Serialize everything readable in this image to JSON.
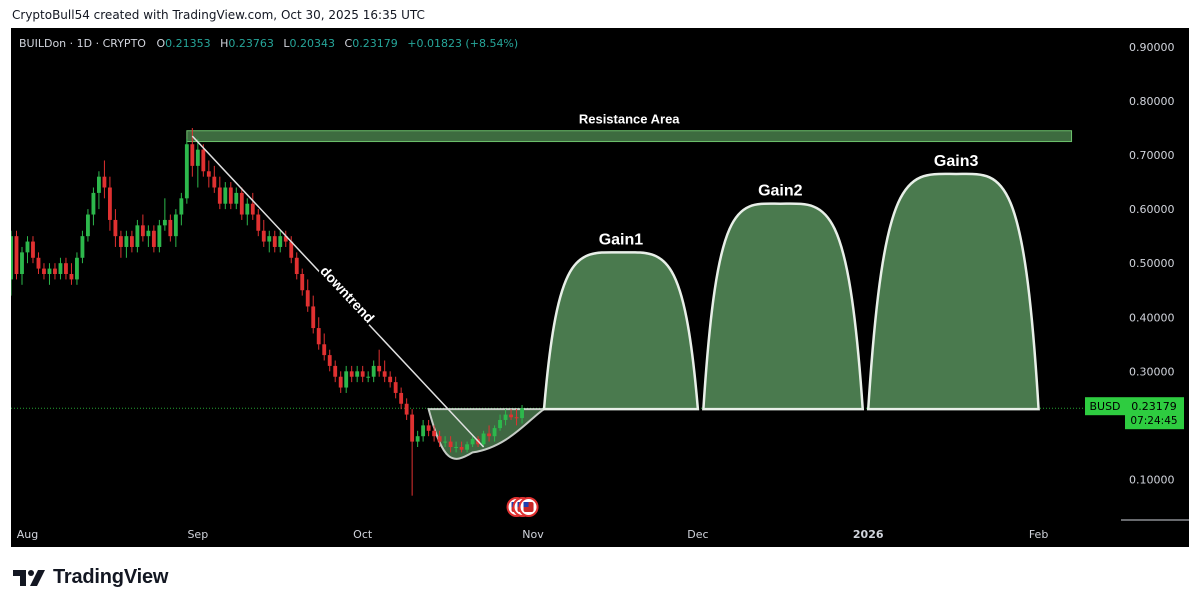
{
  "header": {
    "attribution": "CryptoBull54 created with TradingView.com, Oct 30, 2025 16:35 UTC"
  },
  "symbol": {
    "title": "BUILDon · 1D · CRYPTO",
    "open_label": "O",
    "open": "0.21353",
    "high_label": "H",
    "high": "0.23763",
    "low_label": "L",
    "low": "0.20343",
    "close_label": "C",
    "close": "0.23179",
    "change": "+0.01823 (+8.54%)"
  },
  "price_badge": {
    "currency": "BUSD",
    "price": "0.23179",
    "countdown": "07:24:45"
  },
  "brand": {
    "name": "TradingView"
  },
  "colors": {
    "background": "#000000",
    "up": "#2db84c",
    "down": "#e03131",
    "shape_fill": "#4a7a4e",
    "shape_stroke": "#e8efe8",
    "resistance_fill": "#3d6b3f",
    "resistance_stroke": "#6dc26d",
    "axis_text": "#d1d4dc",
    "badge": "#2ecc40"
  },
  "chart_data": {
    "type": "candlestick",
    "price_axis": {
      "ylim": [
        0.025,
        0.935
      ],
      "ticks": [
        0.9,
        0.8,
        0.7,
        0.6,
        0.5,
        0.4,
        0.3,
        0.1
      ],
      "tick_labels": [
        "0.90000",
        "0.80000",
        "0.70000",
        "0.60000",
        "0.50000",
        "0.40000",
        "0.30000",
        "0.10000"
      ]
    },
    "time_axis": {
      "start": "2025-07-29",
      "end": "2026-02-16",
      "labels": [
        {
          "date": "2025-08-01",
          "label": "Aug"
        },
        {
          "date": "2025-09-01",
          "label": "Sep"
        },
        {
          "date": "2025-10-01",
          "label": "Oct"
        },
        {
          "date": "2025-11-01",
          "label": "Nov"
        },
        {
          "date": "2025-12-01",
          "label": "Dec"
        },
        {
          "date": "2026-01-01",
          "label": "2026",
          "bold": true
        },
        {
          "date": "2026-02-01",
          "label": "Feb"
        }
      ]
    },
    "candles": [
      {
        "t": "2025-07-29",
        "o": 0.47,
        "h": 0.56,
        "l": 0.44,
        "c": 0.55
      },
      {
        "t": "2025-07-30",
        "o": 0.55,
        "h": 0.56,
        "l": 0.47,
        "c": 0.48
      },
      {
        "t": "2025-07-31",
        "o": 0.48,
        "h": 0.53,
        "l": 0.46,
        "c": 0.52
      },
      {
        "t": "2025-08-01",
        "o": 0.52,
        "h": 0.55,
        "l": 0.5,
        "c": 0.54
      },
      {
        "t": "2025-08-02",
        "o": 0.54,
        "h": 0.55,
        "l": 0.5,
        "c": 0.51
      },
      {
        "t": "2025-08-03",
        "o": 0.51,
        "h": 0.52,
        "l": 0.48,
        "c": 0.49
      },
      {
        "t": "2025-08-04",
        "o": 0.49,
        "h": 0.5,
        "l": 0.47,
        "c": 0.48
      },
      {
        "t": "2025-08-05",
        "o": 0.48,
        "h": 0.5,
        "l": 0.46,
        "c": 0.49
      },
      {
        "t": "2025-08-06",
        "o": 0.49,
        "h": 0.5,
        "l": 0.47,
        "c": 0.48
      },
      {
        "t": "2025-08-07",
        "o": 0.48,
        "h": 0.51,
        "l": 0.47,
        "c": 0.5
      },
      {
        "t": "2025-08-08",
        "o": 0.5,
        "h": 0.51,
        "l": 0.47,
        "c": 0.48
      },
      {
        "t": "2025-08-09",
        "o": 0.48,
        "h": 0.5,
        "l": 0.46,
        "c": 0.47
      },
      {
        "t": "2025-08-10",
        "o": 0.47,
        "h": 0.52,
        "l": 0.46,
        "c": 0.51
      },
      {
        "t": "2025-08-11",
        "o": 0.51,
        "h": 0.56,
        "l": 0.5,
        "c": 0.55
      },
      {
        "t": "2025-08-12",
        "o": 0.55,
        "h": 0.6,
        "l": 0.54,
        "c": 0.59
      },
      {
        "t": "2025-08-13",
        "o": 0.59,
        "h": 0.64,
        "l": 0.57,
        "c": 0.63
      },
      {
        "t": "2025-08-14",
        "o": 0.63,
        "h": 0.67,
        "l": 0.6,
        "c": 0.66
      },
      {
        "t": "2025-08-15",
        "o": 0.66,
        "h": 0.69,
        "l": 0.62,
        "c": 0.64
      },
      {
        "t": "2025-08-16",
        "o": 0.64,
        "h": 0.66,
        "l": 0.56,
        "c": 0.58
      },
      {
        "t": "2025-08-17",
        "o": 0.58,
        "h": 0.6,
        "l": 0.53,
        "c": 0.55
      },
      {
        "t": "2025-08-18",
        "o": 0.55,
        "h": 0.56,
        "l": 0.51,
        "c": 0.53
      },
      {
        "t": "2025-08-19",
        "o": 0.53,
        "h": 0.56,
        "l": 0.51,
        "c": 0.55
      },
      {
        "t": "2025-08-20",
        "o": 0.55,
        "h": 0.56,
        "l": 0.52,
        "c": 0.53
      },
      {
        "t": "2025-08-21",
        "o": 0.53,
        "h": 0.58,
        "l": 0.52,
        "c": 0.57
      },
      {
        "t": "2025-08-22",
        "o": 0.57,
        "h": 0.59,
        "l": 0.54,
        "c": 0.55
      },
      {
        "t": "2025-08-23",
        "o": 0.55,
        "h": 0.57,
        "l": 0.53,
        "c": 0.56
      },
      {
        "t": "2025-08-24",
        "o": 0.56,
        "h": 0.57,
        "l": 0.52,
        "c": 0.53
      },
      {
        "t": "2025-08-25",
        "o": 0.53,
        "h": 0.58,
        "l": 0.52,
        "c": 0.57
      },
      {
        "t": "2025-08-26",
        "o": 0.57,
        "h": 0.62,
        "l": 0.56,
        "c": 0.58
      },
      {
        "t": "2025-08-27",
        "o": 0.58,
        "h": 0.59,
        "l": 0.54,
        "c": 0.55
      },
      {
        "t": "2025-08-28",
        "o": 0.55,
        "h": 0.6,
        "l": 0.53,
        "c": 0.59
      },
      {
        "t": "2025-08-29",
        "o": 0.59,
        "h": 0.63,
        "l": 0.57,
        "c": 0.62
      },
      {
        "t": "2025-08-30",
        "o": 0.62,
        "h": 0.73,
        "l": 0.61,
        "c": 0.72
      },
      {
        "t": "2025-08-31",
        "o": 0.72,
        "h": 0.75,
        "l": 0.66,
        "c": 0.68
      },
      {
        "t": "2025-09-01",
        "o": 0.68,
        "h": 0.73,
        "l": 0.64,
        "c": 0.71
      },
      {
        "t": "2025-09-02",
        "o": 0.71,
        "h": 0.72,
        "l": 0.66,
        "c": 0.67
      },
      {
        "t": "2025-09-03",
        "o": 0.67,
        "h": 0.69,
        "l": 0.64,
        "c": 0.66
      },
      {
        "t": "2025-09-04",
        "o": 0.66,
        "h": 0.68,
        "l": 0.63,
        "c": 0.64
      },
      {
        "t": "2025-09-05",
        "o": 0.64,
        "h": 0.66,
        "l": 0.6,
        "c": 0.61
      },
      {
        "t": "2025-09-06",
        "o": 0.61,
        "h": 0.65,
        "l": 0.6,
        "c": 0.64
      },
      {
        "t": "2025-09-07",
        "o": 0.64,
        "h": 0.65,
        "l": 0.6,
        "c": 0.61
      },
      {
        "t": "2025-09-08",
        "o": 0.61,
        "h": 0.64,
        "l": 0.6,
        "c": 0.63
      },
      {
        "t": "2025-09-09",
        "o": 0.63,
        "h": 0.64,
        "l": 0.58,
        "c": 0.59
      },
      {
        "t": "2025-09-10",
        "o": 0.59,
        "h": 0.62,
        "l": 0.57,
        "c": 0.61
      },
      {
        "t": "2025-09-11",
        "o": 0.61,
        "h": 0.63,
        "l": 0.58,
        "c": 0.59
      },
      {
        "t": "2025-09-12",
        "o": 0.59,
        "h": 0.6,
        "l": 0.55,
        "c": 0.56
      },
      {
        "t": "2025-09-13",
        "o": 0.56,
        "h": 0.58,
        "l": 0.53,
        "c": 0.54
      },
      {
        "t": "2025-09-14",
        "o": 0.54,
        "h": 0.56,
        "l": 0.52,
        "c": 0.55
      },
      {
        "t": "2025-09-15",
        "o": 0.55,
        "h": 0.56,
        "l": 0.52,
        "c": 0.53
      },
      {
        "t": "2025-09-16",
        "o": 0.53,
        "h": 0.56,
        "l": 0.52,
        "c": 0.55
      },
      {
        "t": "2025-09-17",
        "o": 0.55,
        "h": 0.56,
        "l": 0.53,
        "c": 0.54
      },
      {
        "t": "2025-09-18",
        "o": 0.54,
        "h": 0.55,
        "l": 0.5,
        "c": 0.51
      },
      {
        "t": "2025-09-19",
        "o": 0.51,
        "h": 0.52,
        "l": 0.47,
        "c": 0.48
      },
      {
        "t": "2025-09-20",
        "o": 0.48,
        "h": 0.49,
        "l": 0.44,
        "c": 0.45
      },
      {
        "t": "2025-09-21",
        "o": 0.45,
        "h": 0.47,
        "l": 0.41,
        "c": 0.42
      },
      {
        "t": "2025-09-22",
        "o": 0.42,
        "h": 0.44,
        "l": 0.37,
        "c": 0.38
      },
      {
        "t": "2025-09-23",
        "o": 0.38,
        "h": 0.4,
        "l": 0.34,
        "c": 0.35
      },
      {
        "t": "2025-09-24",
        "o": 0.35,
        "h": 0.37,
        "l": 0.32,
        "c": 0.33
      },
      {
        "t": "2025-09-25",
        "o": 0.33,
        "h": 0.34,
        "l": 0.3,
        "c": 0.31
      },
      {
        "t": "2025-09-26",
        "o": 0.31,
        "h": 0.32,
        "l": 0.28,
        "c": 0.29
      },
      {
        "t": "2025-09-27",
        "o": 0.29,
        "h": 0.3,
        "l": 0.26,
        "c": 0.27
      },
      {
        "t": "2025-09-28",
        "o": 0.27,
        "h": 0.31,
        "l": 0.26,
        "c": 0.3
      },
      {
        "t": "2025-09-29",
        "o": 0.3,
        "h": 0.31,
        "l": 0.28,
        "c": 0.29
      },
      {
        "t": "2025-09-30",
        "o": 0.29,
        "h": 0.31,
        "l": 0.28,
        "c": 0.3
      },
      {
        "t": "2025-10-01",
        "o": 0.3,
        "h": 0.31,
        "l": 0.28,
        "c": 0.29
      },
      {
        "t": "2025-10-02",
        "o": 0.29,
        "h": 0.3,
        "l": 0.28,
        "c": 0.29
      },
      {
        "t": "2025-10-03",
        "o": 0.29,
        "h": 0.32,
        "l": 0.28,
        "c": 0.31
      },
      {
        "t": "2025-10-04",
        "o": 0.31,
        "h": 0.34,
        "l": 0.29,
        "c": 0.3
      },
      {
        "t": "2025-10-05",
        "o": 0.3,
        "h": 0.32,
        "l": 0.28,
        "c": 0.29
      },
      {
        "t": "2025-10-06",
        "o": 0.29,
        "h": 0.3,
        "l": 0.27,
        "c": 0.28
      },
      {
        "t": "2025-10-07",
        "o": 0.28,
        "h": 0.29,
        "l": 0.25,
        "c": 0.26
      },
      {
        "t": "2025-10-08",
        "o": 0.26,
        "h": 0.27,
        "l": 0.23,
        "c": 0.24
      },
      {
        "t": "2025-10-09",
        "o": 0.24,
        "h": 0.25,
        "l": 0.21,
        "c": 0.22
      },
      {
        "t": "2025-10-10",
        "o": 0.22,
        "h": 0.23,
        "l": 0.07,
        "c": 0.17
      },
      {
        "t": "2025-10-11",
        "o": 0.17,
        "h": 0.19,
        "l": 0.16,
        "c": 0.18
      },
      {
        "t": "2025-10-12",
        "o": 0.18,
        "h": 0.21,
        "l": 0.17,
        "c": 0.2
      },
      {
        "t": "2025-10-13",
        "o": 0.2,
        "h": 0.21,
        "l": 0.18,
        "c": 0.19
      },
      {
        "t": "2025-10-14",
        "o": 0.19,
        "h": 0.2,
        "l": 0.17,
        "c": 0.18
      },
      {
        "t": "2025-10-15",
        "o": 0.18,
        "h": 0.19,
        "l": 0.16,
        "c": 0.17
      },
      {
        "t": "2025-10-16",
        "o": 0.17,
        "h": 0.18,
        "l": 0.16,
        "c": 0.17
      },
      {
        "t": "2025-10-17",
        "o": 0.17,
        "h": 0.18,
        "l": 0.15,
        "c": 0.16
      },
      {
        "t": "2025-10-18",
        "o": 0.16,
        "h": 0.17,
        "l": 0.15,
        "c": 0.16
      },
      {
        "t": "2025-10-19",
        "o": 0.16,
        "h": 0.17,
        "l": 0.15,
        "c": 0.155
      },
      {
        "t": "2025-10-20",
        "o": 0.155,
        "h": 0.17,
        "l": 0.15,
        "c": 0.165
      },
      {
        "t": "2025-10-21",
        "o": 0.165,
        "h": 0.18,
        "l": 0.16,
        "c": 0.175
      },
      {
        "t": "2025-10-22",
        "o": 0.175,
        "h": 0.18,
        "l": 0.16,
        "c": 0.165
      },
      {
        "t": "2025-10-23",
        "o": 0.165,
        "h": 0.19,
        "l": 0.16,
        "c": 0.185
      },
      {
        "t": "2025-10-24",
        "o": 0.185,
        "h": 0.2,
        "l": 0.17,
        "c": 0.18
      },
      {
        "t": "2025-10-25",
        "o": 0.18,
        "h": 0.2,
        "l": 0.17,
        "c": 0.195
      },
      {
        "t": "2025-10-26",
        "o": 0.195,
        "h": 0.22,
        "l": 0.19,
        "c": 0.21
      },
      {
        "t": "2025-10-27",
        "o": 0.21,
        "h": 0.23,
        "l": 0.2,
        "c": 0.22
      },
      {
        "t": "2025-10-28",
        "o": 0.22,
        "h": 0.23,
        "l": 0.21,
        "c": 0.215
      },
      {
        "t": "2025-10-29",
        "o": 0.215,
        "h": 0.23,
        "l": 0.2,
        "c": 0.2135
      },
      {
        "t": "2025-10-30",
        "o": 0.21353,
        "h": 0.23763,
        "l": 0.20343,
        "c": 0.23179
      }
    ],
    "current_price": 0.23179,
    "resistance_area": {
      "label": "Resistance Area",
      "from": "2025-08-30",
      "to": "2026-02-07",
      "low": 0.725,
      "high": 0.745
    },
    "downtrend": {
      "label": "downtrend",
      "from": {
        "t": "2025-08-31",
        "p": 0.735
      },
      "to": {
        "t": "2025-10-23",
        "p": 0.16
      }
    },
    "cup": {
      "from": "2025-10-13",
      "bottom": {
        "t": "2025-10-21",
        "p": 0.15
      },
      "to": "2025-11-03",
      "base": 0.23
    },
    "arcs": [
      {
        "label": "Gain1",
        "from": "2025-11-03",
        "peak": {
          "t": "2025-11-17",
          "p": 0.52
        },
        "to": "2025-12-01"
      },
      {
        "label": "Gain2",
        "from": "2025-12-02",
        "peak": {
          "t": "2025-12-16",
          "p": 0.61
        },
        "to": "2025-12-31"
      },
      {
        "label": "Gain3",
        "from": "2026-01-01",
        "peak": {
          "t": "2026-01-17",
          "p": 0.665
        },
        "to": "2026-02-01"
      }
    ]
  }
}
